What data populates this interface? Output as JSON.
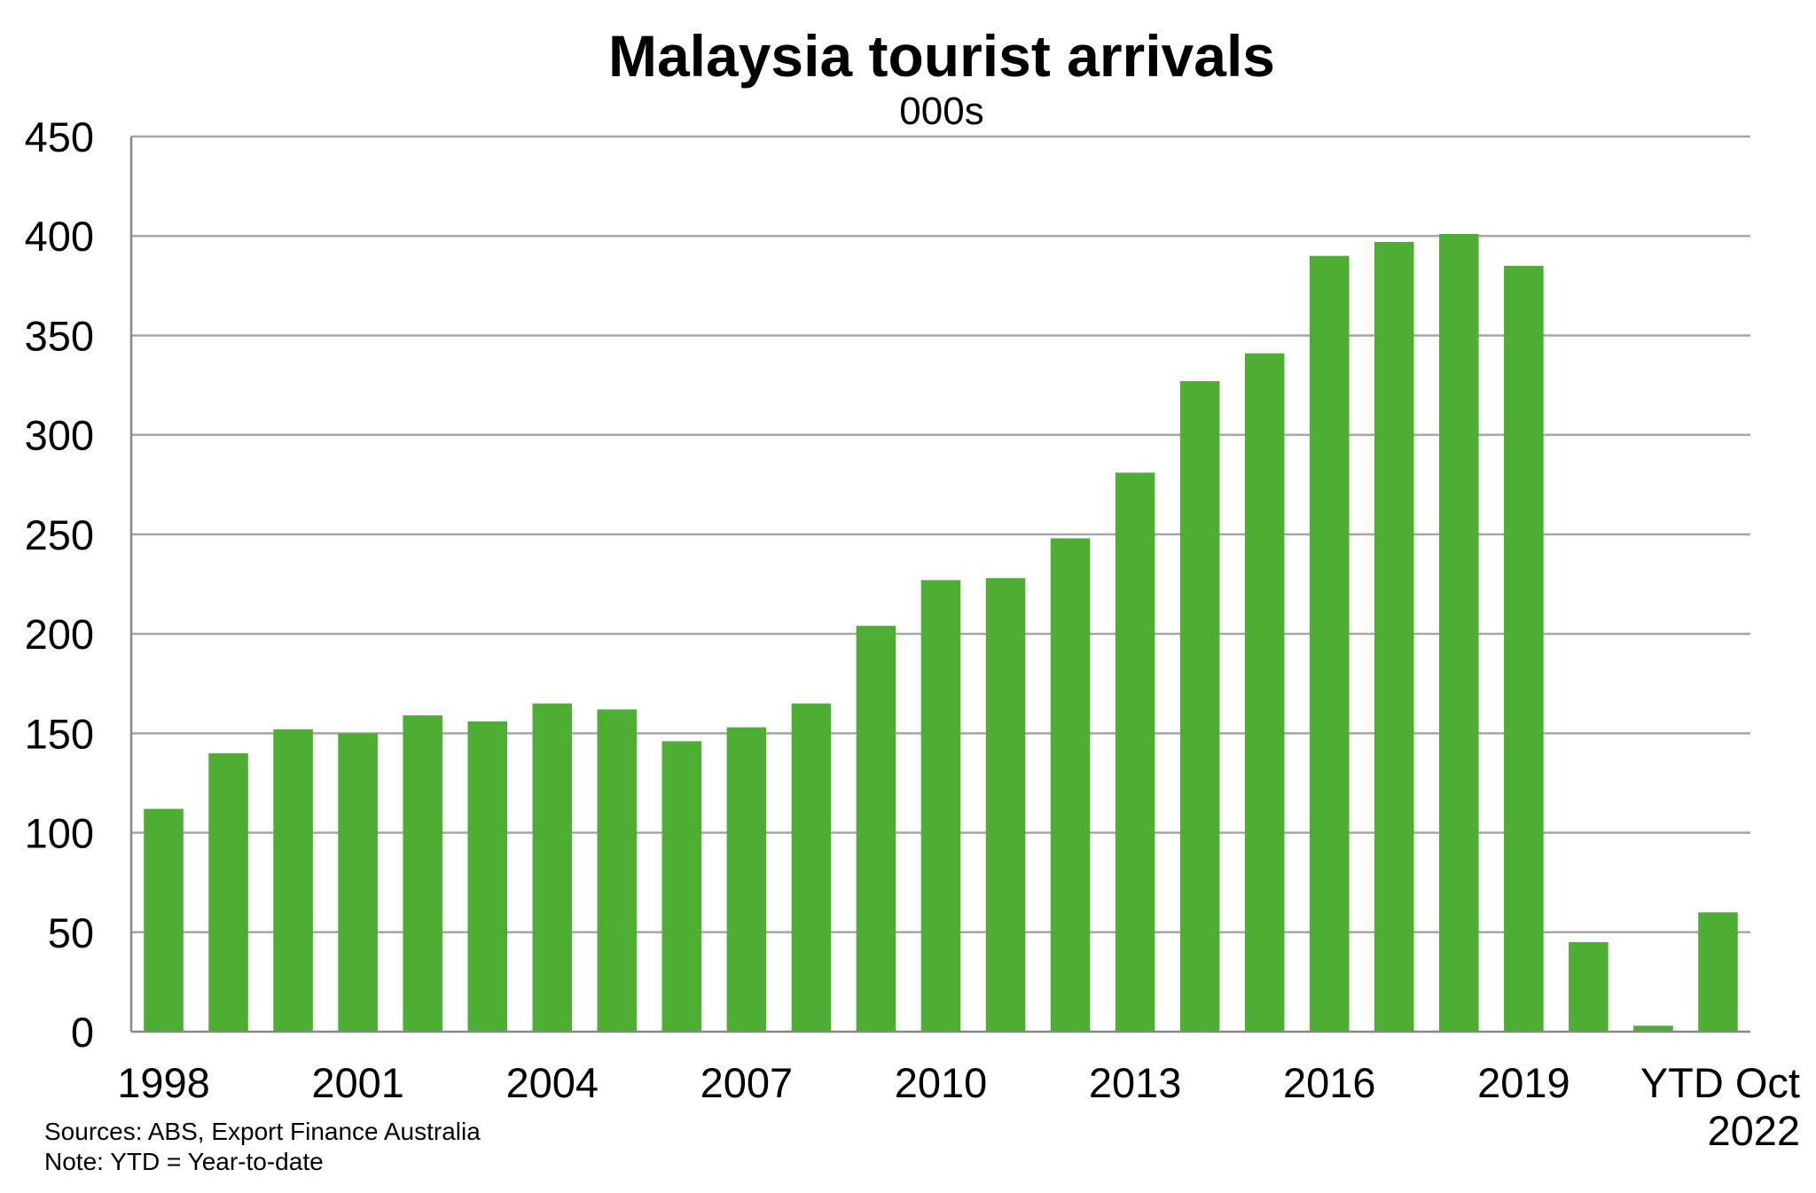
{
  "chart_data": {
    "type": "bar",
    "title": "Malaysia tourist arrivals",
    "subtitle": "000s",
    "xlabel": "",
    "ylabel": "",
    "ylim": [
      0,
      450
    ],
    "yticks": [
      0,
      50,
      100,
      150,
      200,
      250,
      300,
      350,
      400,
      450
    ],
    "grid": true,
    "legend": "none",
    "bar_color": "#4ead33",
    "gridline_color": "#a6a6a6",
    "categories": [
      "1998",
      "1999",
      "2000",
      "2001",
      "2002",
      "2003",
      "2004",
      "2005",
      "2006",
      "2007",
      "2008",
      "2009",
      "2010",
      "2011",
      "2012",
      "2013",
      "2014",
      "2015",
      "2016",
      "2017",
      "2018",
      "2019",
      "2020",
      "2021",
      "YTD Oct 2022"
    ],
    "category_labels_shown": [
      {
        "index": 0,
        "lines": [
          "1998"
        ]
      },
      {
        "index": 3,
        "lines": [
          "2001"
        ]
      },
      {
        "index": 6,
        "lines": [
          "2004"
        ]
      },
      {
        "index": 9,
        "lines": [
          "2007"
        ]
      },
      {
        "index": 12,
        "lines": [
          "2010"
        ]
      },
      {
        "index": 15,
        "lines": [
          "2013"
        ]
      },
      {
        "index": 18,
        "lines": [
          "2016"
        ]
      },
      {
        "index": 21,
        "lines": [
          "2019"
        ]
      },
      {
        "index": 24,
        "lines": [
          "YTD Oct",
          "2022"
        ]
      }
    ],
    "values": [
      112,
      140,
      152,
      150,
      159,
      156,
      165,
      162,
      146,
      153,
      165,
      204,
      227,
      228,
      248,
      281,
      327,
      341,
      390,
      397,
      401,
      385,
      45,
      3,
      60
    ]
  },
  "footnotes": {
    "sources": "Sources: ABS, Export Finance Australia",
    "note": "Note: YTD = Year-to-date"
  }
}
